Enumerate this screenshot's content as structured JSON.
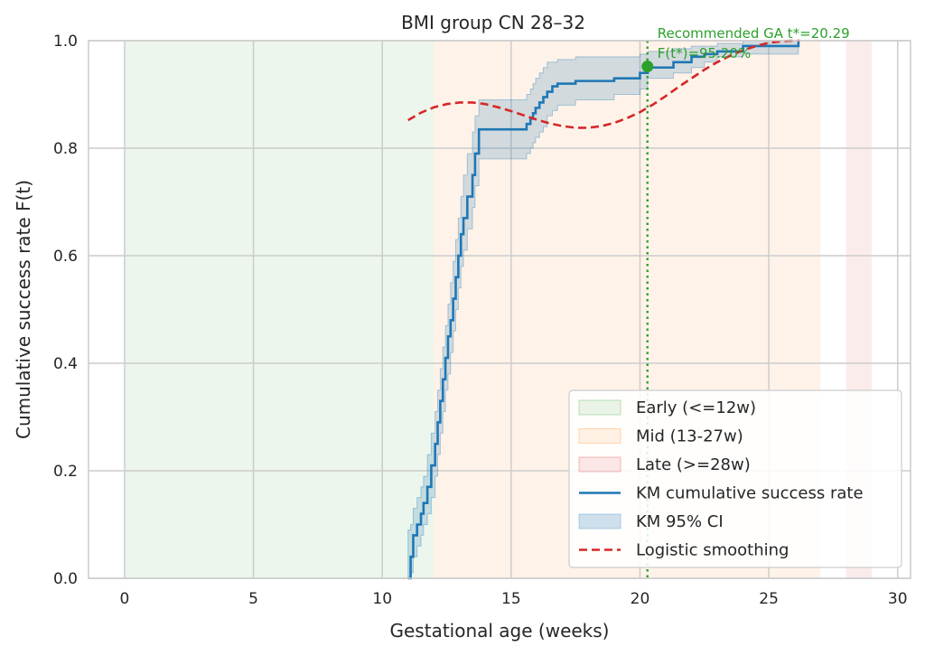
{
  "chart_data": {
    "type": "line",
    "title": "BMI group CN 28–32",
    "xlabel": "Gestational age (weeks)",
    "ylabel": "Cumulative success rate F(t)",
    "xlim": [
      -1.4,
      30.5
    ],
    "ylim": [
      0,
      1
    ],
    "xticks": [
      0,
      5,
      10,
      15,
      20,
      25,
      30
    ],
    "yticks": [
      0.0,
      0.2,
      0.4,
      0.6,
      0.8,
      1.0
    ],
    "xtick_labels": [
      "0",
      "5",
      "10",
      "15",
      "20",
      "25",
      "30"
    ],
    "ytick_labels": [
      "0.0",
      "0.2",
      "0.4",
      "0.6",
      "0.8",
      "1.0"
    ],
    "grid": true,
    "legend_position": "lower-right",
    "regions": [
      {
        "name": "Early (<=12w)",
        "x0": 0,
        "x1": 12,
        "color": "#2ca02c"
      },
      {
        "name": "Mid (13-27w)",
        "x0": 12,
        "x1": 27,
        "color": "#ff7f0e"
      },
      {
        "name": "Late (>=28w)",
        "x0": 28,
        "x1": 29,
        "color": "#d62728"
      }
    ],
    "series": [
      {
        "name": "KM cumulative success rate",
        "style": "step",
        "color": "#1f77b4",
        "x": [
          11.0,
          11.1,
          11.2,
          11.35,
          11.5,
          11.6,
          11.75,
          11.9,
          12.05,
          12.15,
          12.25,
          12.35,
          12.45,
          12.55,
          12.65,
          12.75,
          12.85,
          12.95,
          13.05,
          13.15,
          13.3,
          13.5,
          13.6,
          13.75,
          15.6,
          15.75,
          15.85,
          15.95,
          16.1,
          16.25,
          16.4,
          16.6,
          16.8,
          17.5,
          19.0,
          20.0,
          20.3,
          21.3,
          22.0,
          22.5,
          23.0,
          24.0,
          26.15
        ],
        "y": [
          0.0,
          0.04,
          0.08,
          0.1,
          0.12,
          0.14,
          0.17,
          0.21,
          0.25,
          0.29,
          0.33,
          0.37,
          0.41,
          0.45,
          0.48,
          0.52,
          0.56,
          0.6,
          0.64,
          0.67,
          0.71,
          0.75,
          0.79,
          0.835,
          0.845,
          0.855,
          0.865,
          0.875,
          0.885,
          0.895,
          0.905,
          0.915,
          0.92,
          0.925,
          0.93,
          0.94,
          0.95,
          0.96,
          0.97,
          0.975,
          0.98,
          0.99,
          1.0
        ],
        "x_end": 26.15
      },
      {
        "name": "KM 95% CI",
        "style": "band",
        "color": "#1f77b4",
        "lower": [
          0.0,
          0.01,
          0.04,
          0.06,
          0.08,
          0.1,
          0.12,
          0.15,
          0.19,
          0.23,
          0.27,
          0.31,
          0.35,
          0.38,
          0.42,
          0.46,
          0.5,
          0.54,
          0.58,
          0.61,
          0.65,
          0.69,
          0.73,
          0.78,
          0.79,
          0.8,
          0.81,
          0.82,
          0.83,
          0.84,
          0.86,
          0.87,
          0.88,
          0.89,
          0.9,
          0.91,
          0.93,
          0.94,
          0.95,
          0.96,
          0.97,
          0.975,
          0.98
        ],
        "upper": [
          0.09,
          0.1,
          0.13,
          0.15,
          0.17,
          0.19,
          0.23,
          0.27,
          0.31,
          0.35,
          0.39,
          0.43,
          0.47,
          0.51,
          0.55,
          0.59,
          0.63,
          0.67,
          0.71,
          0.75,
          0.79,
          0.83,
          0.86,
          0.89,
          0.9,
          0.91,
          0.92,
          0.93,
          0.94,
          0.95,
          0.96,
          0.96,
          0.965,
          0.97,
          0.97,
          0.975,
          0.98,
          0.985,
          0.99,
          0.99,
          0.995,
          1.0,
          1.0
        ]
      },
      {
        "name": "Logistic smoothing",
        "style": "dashed",
        "color": "#d62728",
        "x": [
          11.0,
          11.5,
          12.0,
          12.5,
          13.0,
          13.5,
          14.0,
          14.5,
          15.0,
          15.5,
          16.0,
          16.5,
          17.0,
          17.5,
          18.0,
          18.5,
          19.0,
          19.5,
          20.0,
          20.5,
          21.0,
          21.5,
          22.0,
          22.5,
          23.0,
          23.5,
          24.0,
          24.5,
          25.0,
          25.5,
          26.0,
          26.2
        ],
        "y": [
          0.852,
          0.866,
          0.876,
          0.882,
          0.885,
          0.885,
          0.882,
          0.876,
          0.869,
          0.861,
          0.853,
          0.846,
          0.841,
          0.838,
          0.838,
          0.841,
          0.847,
          0.856,
          0.867,
          0.881,
          0.897,
          0.914,
          0.93,
          0.946,
          0.96,
          0.972,
          0.982,
          0.99,
          0.996,
          0.999,
          1.0,
          1.0
        ]
      }
    ],
    "annotations": {
      "recommended_t": 20.29,
      "recommended_F": 0.952,
      "line_color": "#2ca02c",
      "text_line1": "Recommended GA t*=20.29",
      "text_line2": "F(t*)=95.20%"
    },
    "legend": [
      {
        "label": "Early (<=12w)",
        "kind": "patch",
        "color": "#2ca02c"
      },
      {
        "label": "Mid (13-27w)",
        "kind": "patch",
        "color": "#ff7f0e"
      },
      {
        "label": "Late (>=28w)",
        "kind": "patch",
        "color": "#d62728"
      },
      {
        "label": "KM cumulative success rate",
        "kind": "line",
        "color": "#1f77b4"
      },
      {
        "label": "KM 95% CI",
        "kind": "patch",
        "color": "#1f77b4"
      },
      {
        "label": "Logistic smoothing",
        "kind": "dashed",
        "color": "#d62728"
      }
    ]
  }
}
